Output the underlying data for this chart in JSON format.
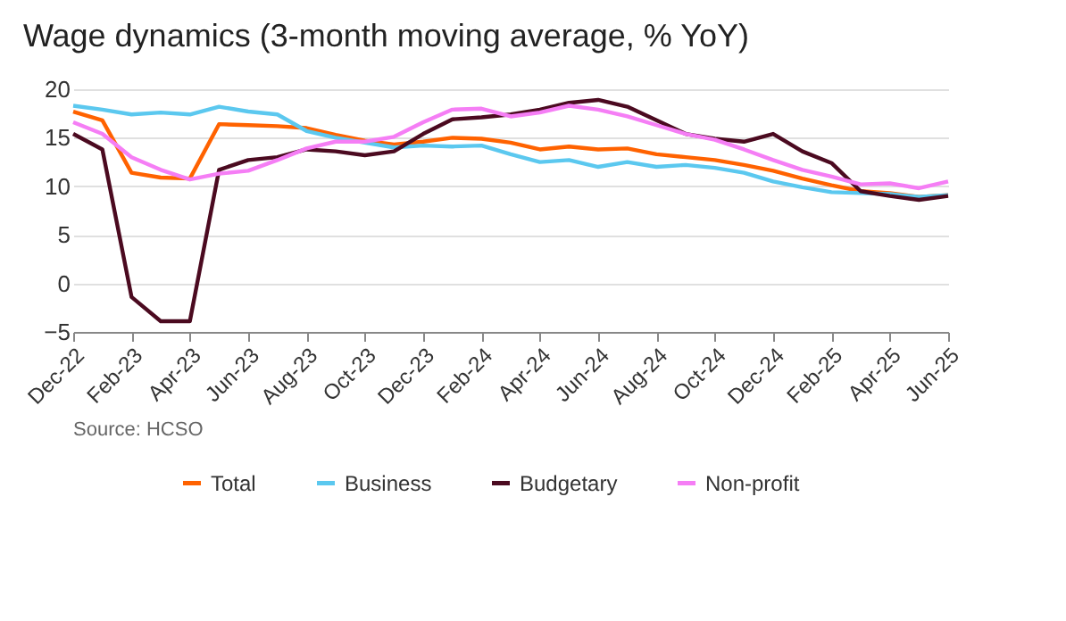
{
  "chart_data": {
    "type": "line",
    "title": "Wage dynamics (3-month moving average, % YoY)",
    "categories": [
      "Dec-22",
      null,
      "Feb-23",
      null,
      "Apr-23",
      null,
      "Jun-23",
      null,
      "Aug-23",
      null,
      "Oct-23",
      null,
      "Dec-23",
      null,
      "Feb-24",
      null,
      "Apr-24",
      null,
      "Jun-24",
      null,
      "Aug-24",
      null,
      "Oct-24",
      null,
      "Dec-24",
      null,
      "Feb-25",
      null,
      "Apr-25",
      null,
      "Jun-25"
    ],
    "series": [
      {
        "name": "Total",
        "color": "#ff6200",
        "values": [
          17.7,
          16.8,
          11.4,
          10.9,
          10.8,
          16.4,
          16.3,
          16.2,
          16.0,
          15.3,
          14.7,
          14.3,
          14.6,
          15.0,
          14.9,
          14.5,
          13.8,
          14.1,
          13.8,
          13.9,
          13.3,
          13.0,
          12.7,
          12.2,
          11.6,
          10.8,
          10.1,
          9.5,
          9.3,
          8.9,
          9.1
        ]
      },
      {
        "name": "Business",
        "color": "#5bc8ef",
        "values": [
          18.3,
          17.9,
          17.4,
          17.6,
          17.4,
          18.2,
          17.7,
          17.4,
          15.7,
          15.0,
          14.5,
          14.0,
          14.2,
          14.1,
          14.2,
          13.3,
          12.5,
          12.7,
          12.0,
          12.5,
          12.0,
          12.2,
          11.9,
          11.4,
          10.5,
          9.9,
          9.4,
          9.3,
          9.2,
          8.9,
          9.1
        ]
      },
      {
        "name": "Budgetary",
        "color": "#4b0a20",
        "values": [
          15.4,
          13.8,
          -1.4,
          -3.9,
          -3.9,
          11.7,
          12.7,
          13.0,
          13.8,
          13.6,
          13.2,
          13.6,
          15.4,
          16.9,
          17.1,
          17.4,
          17.9,
          18.6,
          18.9,
          18.2,
          16.8,
          15.4,
          14.9,
          14.6,
          15.4,
          13.6,
          12.4,
          9.5,
          9.0,
          8.6,
          9.0
        ]
      },
      {
        "name": "Non-profit",
        "color": "#f57ef5",
        "values": [
          16.6,
          15.4,
          13.0,
          11.7,
          10.7,
          11.3,
          11.6,
          12.7,
          13.9,
          14.6,
          14.6,
          15.1,
          16.6,
          17.9,
          18.0,
          17.2,
          17.6,
          18.3,
          17.9,
          17.2,
          16.3,
          15.4,
          14.8,
          13.8,
          12.7,
          11.7,
          11.0,
          10.2,
          10.3,
          9.8,
          10.5
        ]
      }
    ],
    "ylim": [
      -5,
      20
    ],
    "yticks": [
      -5,
      0,
      5,
      10,
      15,
      20
    ],
    "grid": "y",
    "legend": "bottom",
    "marker": "none",
    "line_style": "solid",
    "annotations": [
      "Source: HCSO"
    ]
  }
}
